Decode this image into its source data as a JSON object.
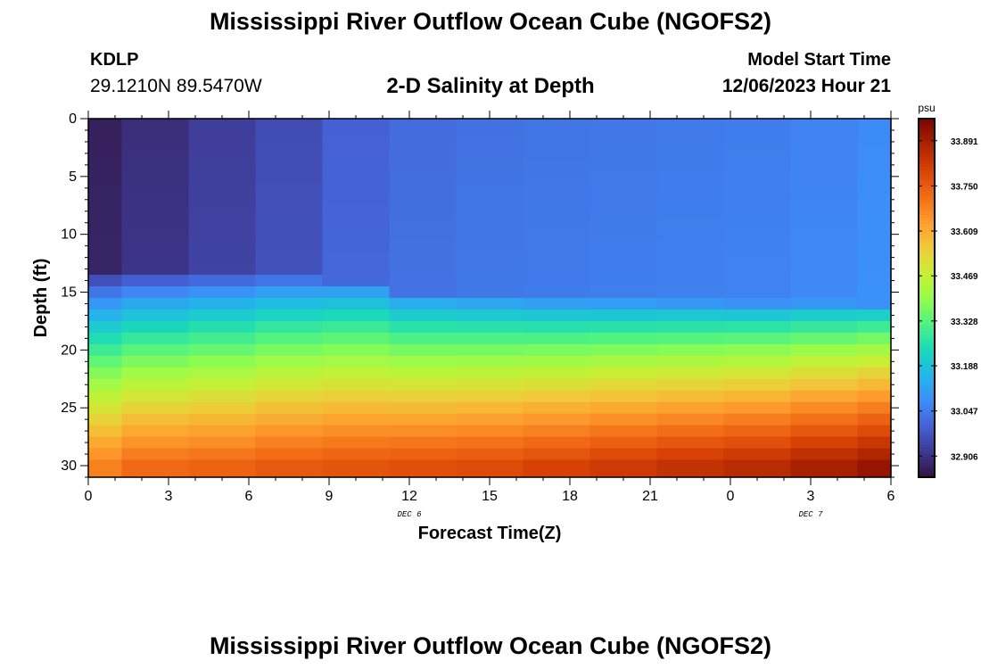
{
  "header": {
    "title": "Mississippi River Outflow Ocean Cube (NGOFS2)",
    "station_id": "KDLP",
    "station_coords": "29.1210N  89.5470W",
    "subtitle": "2-D Salinity at Depth",
    "model_start_label": "Model Start Time",
    "model_start_value": "12/06/2023 Hour 21"
  },
  "footer": {
    "title": "Mississippi River Outflow Ocean Cube (NGOFS2)"
  },
  "chart_data": {
    "type": "heatmap",
    "title": "2-D Salinity at Depth",
    "xlabel": "Forecast Time(Z)",
    "ylabel": "Depth (ft)",
    "x_tick_labels": [
      "0",
      "3",
      "6",
      "9",
      "12",
      "15",
      "18",
      "21",
      "0",
      "3",
      "6"
    ],
    "x_date_labels": [
      {
        "text": "DEC 6",
        "at_tick": 4
      },
      {
        "text": "DEC 7",
        "at_tick": 9
      }
    ],
    "xlim_hours": [
      0,
      30
    ],
    "y_ticks": [
      0,
      5,
      10,
      15,
      20,
      25,
      30
    ],
    "ylim": [
      0,
      31
    ],
    "colorbar": {
      "unit": "psu",
      "ticks": [
        "32.906",
        "33.047",
        "33.188",
        "33.328",
        "33.469",
        "33.609",
        "33.750",
        "33.891"
      ],
      "min": 32.84,
      "max": 33.96,
      "colors": [
        "#30123b",
        "#3e3891",
        "#4560d4",
        "#3d8df9",
        "#22b7e8",
        "#1ad9ba",
        "#4ef283",
        "#95fd4b",
        "#c9ef34",
        "#f1c93a",
        "#fe9b2d",
        "#f26b15",
        "#d84206",
        "#ac2401",
        "#7a0403"
      ]
    },
    "columns_hours": [
      0,
      2.5,
      5,
      7.5,
      10,
      12.5,
      15,
      17.5,
      20,
      22.5,
      25,
      27.5,
      30
    ],
    "layer_depths_ft": [
      0,
      1,
      2,
      3,
      4,
      5,
      6,
      7,
      8,
      9,
      10,
      11,
      12,
      13,
      14,
      15,
      16,
      17,
      18,
      19,
      20,
      21,
      22,
      23,
      24,
      25,
      26,
      27,
      28,
      29,
      30
    ],
    "surface_salinity_psu": [
      32.87,
      32.9,
      32.93,
      32.96,
      33.0,
      33.02,
      33.03,
      33.035,
      33.04,
      33.045,
      33.05,
      33.06,
      33.075
    ],
    "bottom_salinity_psu": [
      33.72,
      33.76,
      33.77,
      33.79,
      33.8,
      33.81,
      33.82,
      33.84,
      33.86,
      33.88,
      33.9,
      33.93,
      33.96
    ],
    "halocline_depth_ft": [
      13.5,
      13.5,
      13.6,
      13.7,
      14.2,
      15.2,
      15.5,
      15.7,
      15.8,
      15.9,
      16.0,
      16.0,
      16.1
    ]
  }
}
